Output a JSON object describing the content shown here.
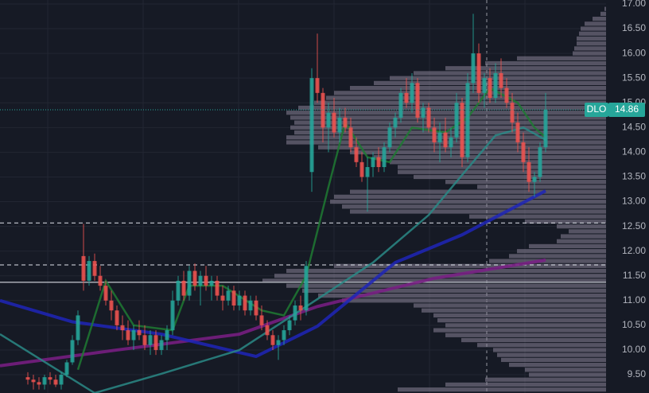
{
  "chart_data": {
    "type": "candlestick",
    "symbol": "DLO",
    "last_price": 14.86,
    "ylim": [
      9.13,
      17.08
    ],
    "yticks": [
      {
        "value": 9.5,
        "label": "9.50"
      },
      {
        "value": 10,
        "label": "10.00"
      },
      {
        "value": 10.5,
        "label": "10.50"
      },
      {
        "value": 11,
        "label": "11.00"
      },
      {
        "value": 11.5,
        "label": "11.50"
      },
      {
        "value": 12,
        "label": "12.00"
      },
      {
        "value": 12.5,
        "label": "12.50"
      },
      {
        "value": 13,
        "label": "13.00"
      },
      {
        "value": 13.5,
        "label": "13.50"
      },
      {
        "value": 14,
        "label": "14.00"
      },
      {
        "value": 14.5,
        "label": "14.50"
      },
      {
        "value": 15,
        "label": "15.00"
      },
      {
        "value": 15.5,
        "label": "15.50"
      },
      {
        "value": 16,
        "label": "16.00"
      },
      {
        "value": 16.5,
        "label": "16.50"
      },
      {
        "value": 17,
        "label": "17.00"
      }
    ],
    "grid": true,
    "up_color": "#26a69a",
    "down_color": "#ef5350",
    "open": [
      9.45,
      9.4,
      9.35,
      9.3,
      9.45,
      9.4,
      9.3,
      9.5,
      9.75,
      10.2,
      11.9,
      11.4,
      11.8,
      11.5,
      11.3,
      11.0,
      10.8,
      10.5,
      10.4,
      10.2,
      10.4,
      10.3,
      10.1,
      10.3,
      10.0,
      10.2,
      10.4,
      11.0,
      11.4,
      11.1,
      11.6,
      11.3,
      11.5,
      11.3,
      11.4,
      11.1,
      11.0,
      11.2,
      10.9,
      11.1,
      10.8,
      11.0,
      10.7,
      10.5,
      10.3,
      10.1,
      10.2,
      10.4,
      10.6,
      10.9,
      10.8,
      13.6,
      15.5,
      15.2,
      14.5,
      14.8,
      14.4,
      14.7,
      14.5,
      14.1,
      13.8,
      13.5,
      13.7,
      13.9,
      13.7,
      14.1,
      14.5,
      14.7,
      15.2,
      15.0,
      15.4,
      14.7,
      14.9,
      14.5,
      14.2,
      14.4,
      14.1,
      14.3,
      15.0,
      13.9,
      15.4,
      16.0,
      15.2,
      15.5,
      15.1,
      15.6,
      15.3,
      15.0,
      14.6,
      14.2,
      13.8,
      13.4,
      13.5,
      14.1
    ],
    "high": [
      9.55,
      9.5,
      9.45,
      9.5,
      9.55,
      9.5,
      9.55,
      9.8,
      10.3,
      10.8,
      12.55,
      11.9,
      11.95,
      11.7,
      11.4,
      11.2,
      10.9,
      10.7,
      10.6,
      10.5,
      10.6,
      10.5,
      10.4,
      10.4,
      10.3,
      10.5,
      11.2,
      11.5,
      11.6,
      11.7,
      11.75,
      11.6,
      11.7,
      11.5,
      11.5,
      11.3,
      11.3,
      11.3,
      11.2,
      11.2,
      11.1,
      11.1,
      10.9,
      10.6,
      10.4,
      10.3,
      10.5,
      10.7,
      11.0,
      11.1,
      11.8,
      15.7,
      16.4,
      15.3,
      15.0,
      15.1,
      14.9,
      14.9,
      14.7,
      14.3,
      14.0,
      13.9,
      14.0,
      14.1,
      14.2,
      14.6,
      14.8,
      15.3,
      15.5,
      15.6,
      15.5,
      15.0,
      15.0,
      14.7,
      14.6,
      14.7,
      14.5,
      15.2,
      15.1,
      15.6,
      16.8,
      16.2,
      15.6,
      15.7,
      15.8,
      15.9,
      15.5,
      15.2,
      14.8,
      14.4,
      14.1,
      13.6,
      14.2,
      15.2
    ],
    "low": [
      9.3,
      9.2,
      9.2,
      9.2,
      9.3,
      9.25,
      9.2,
      9.45,
      9.7,
      10.1,
      11.2,
      11.3,
      11.4,
      11.2,
      10.9,
      10.6,
      10.4,
      10.2,
      10.1,
      10.0,
      10.2,
      10.0,
      9.9,
      9.9,
      9.9,
      10.0,
      10.3,
      10.9,
      11.0,
      11.0,
      11.2,
      10.9,
      11.2,
      11.0,
      11.0,
      10.8,
      10.9,
      10.8,
      10.8,
      10.7,
      10.7,
      10.6,
      10.4,
      10.2,
      10.0,
      9.8,
      10.1,
      10.3,
      10.5,
      10.6,
      10.7,
      13.2,
      15.0,
      14.2,
      14.0,
      14.3,
      14.2,
      14.4,
      14.0,
      13.7,
      13.4,
      12.8,
      13.5,
      13.6,
      13.6,
      14.0,
      14.3,
      14.6,
      14.9,
      14.8,
      14.6,
      14.4,
      14.4,
      14.0,
      13.8,
      14.0,
      13.9,
      14.2,
      13.7,
      13.8,
      15.2,
      15.0,
      14.9,
      15.0,
      15.0,
      15.1,
      14.9,
      14.4,
      14.0,
      13.6,
      13.2,
      13.1,
      13.4,
      14.0
    ],
    "close": [
      9.4,
      9.35,
      9.3,
      9.45,
      9.4,
      9.3,
      9.5,
      9.75,
      10.2,
      10.7,
      11.4,
      11.8,
      11.5,
      11.3,
      11.0,
      10.8,
      10.5,
      10.4,
      10.2,
      10.4,
      10.3,
      10.1,
      10.3,
      10.0,
      10.2,
      10.4,
      11.0,
      11.4,
      11.1,
      11.6,
      11.3,
      11.5,
      11.3,
      11.4,
      11.1,
      11.0,
      11.2,
      10.9,
      11.1,
      10.8,
      11.0,
      10.7,
      10.5,
      10.3,
      10.1,
      10.2,
      10.4,
      10.6,
      10.9,
      10.8,
      11.7,
      15.5,
      15.2,
      14.5,
      14.8,
      14.4,
      14.7,
      14.5,
      14.1,
      13.8,
      13.5,
      13.7,
      13.9,
      13.7,
      14.1,
      14.5,
      14.7,
      15.2,
      15.0,
      15.4,
      14.7,
      14.9,
      14.5,
      14.2,
      14.4,
      14.1,
      14.3,
      15.0,
      13.9,
      15.4,
      16.0,
      15.2,
      15.5,
      15.1,
      15.6,
      15.3,
      15.0,
      14.6,
      14.2,
      13.8,
      13.4,
      13.5,
      14.1,
      14.86
    ],
    "moving_averages": [
      {
        "color": "#7b1f86",
        "x": [
          -5,
          16,
          38,
          52,
          73,
          93
        ],
        "values": [
          9.68,
          10.0,
          10.32,
          10.88,
          11.45,
          11.82
        ]
      },
      {
        "color": "#1f26b8",
        "x": [
          -5,
          8,
          24,
          41,
          52,
          66,
          78,
          93
        ],
        "values": [
          11.0,
          10.57,
          10.32,
          9.87,
          10.48,
          11.77,
          12.33,
          13.22
        ]
      },
      {
        "color": "#2a8a86",
        "x": [
          -5,
          12,
          24,
          38,
          50,
          62,
          72,
          78,
          84,
          89,
          93
        ],
        "values": [
          10.32,
          9.13,
          9.52,
          10.0,
          10.88,
          11.77,
          12.73,
          13.54,
          14.34,
          14.5,
          14.25
        ]
      },
      {
        "color": "#1f7a32",
        "x": [
          9,
          14,
          19,
          26,
          29,
          35,
          42,
          46,
          50,
          54,
          57,
          61,
          65,
          69,
          75,
          79,
          83,
          88,
          91,
          93
        ],
        "values": [
          9.6,
          11.4,
          10.5,
          10.4,
          11.3,
          11.3,
          10.8,
          10.7,
          11.5,
          13.3,
          14.6,
          13.9,
          13.8,
          14.5,
          14.4,
          14.7,
          15.3,
          15.0,
          14.5,
          14.3
        ]
      }
    ],
    "profile": {
      "color": "#8a8398",
      "prices": [
        17.0,
        16.9,
        16.8,
        16.7,
        16.6,
        16.5,
        16.4,
        16.3,
        16.2,
        16.1,
        16.0,
        15.9,
        15.8,
        15.7,
        15.6,
        15.5,
        15.4,
        15.3,
        15.2,
        15.1,
        15.0,
        14.9,
        14.8,
        14.7,
        14.6,
        14.5,
        14.4,
        14.3,
        14.2,
        14.1,
        14.0,
        13.9,
        13.8,
        13.7,
        13.6,
        13.5,
        13.4,
        13.3,
        13.2,
        13.1,
        13.0,
        12.9,
        12.8,
        12.7,
        12.6,
        12.5,
        12.4,
        12.3,
        12.2,
        12.1,
        12.0,
        11.9,
        11.8,
        11.7,
        11.6,
        11.5,
        11.4,
        11.3,
        11.2,
        11.1,
        11.0,
        10.9,
        10.8,
        10.7,
        10.6,
        10.5,
        10.4,
        10.3,
        10.2,
        10.1,
        10.0,
        9.9,
        9.8,
        9.7,
        9.6,
        9.5,
        9.4,
        9.3,
        9.2
      ],
      "volumes": [
        0,
        2,
        7,
        17,
        27,
        32,
        34,
        37,
        37,
        40,
        42,
        112,
        152,
        202,
        242,
        272,
        292,
        322,
        342,
        352,
        367,
        387,
        402,
        397,
        392,
        397,
        392,
        402,
        402,
        362,
        322,
        292,
        272,
        262,
        262,
        242,
        202,
        162,
        322,
        342,
        347,
        332,
        322,
        172,
        102,
        62,
        47,
        57,
        62,
        97,
        112,
        122,
        147,
        342,
        402,
        417,
        432,
        402,
        382,
        362,
        332,
        242,
        232,
        217,
        212,
        202,
        217,
        202,
        182,
        162,
        142,
        137,
        132,
        122,
        102,
        97,
        152,
        202,
        262
      ]
    },
    "levels": [
      {
        "value": 12.57,
        "style": "dashed"
      },
      {
        "value": 11.72,
        "style": "dashed"
      },
      {
        "value": 11.37,
        "style": "solid"
      }
    ]
  }
}
